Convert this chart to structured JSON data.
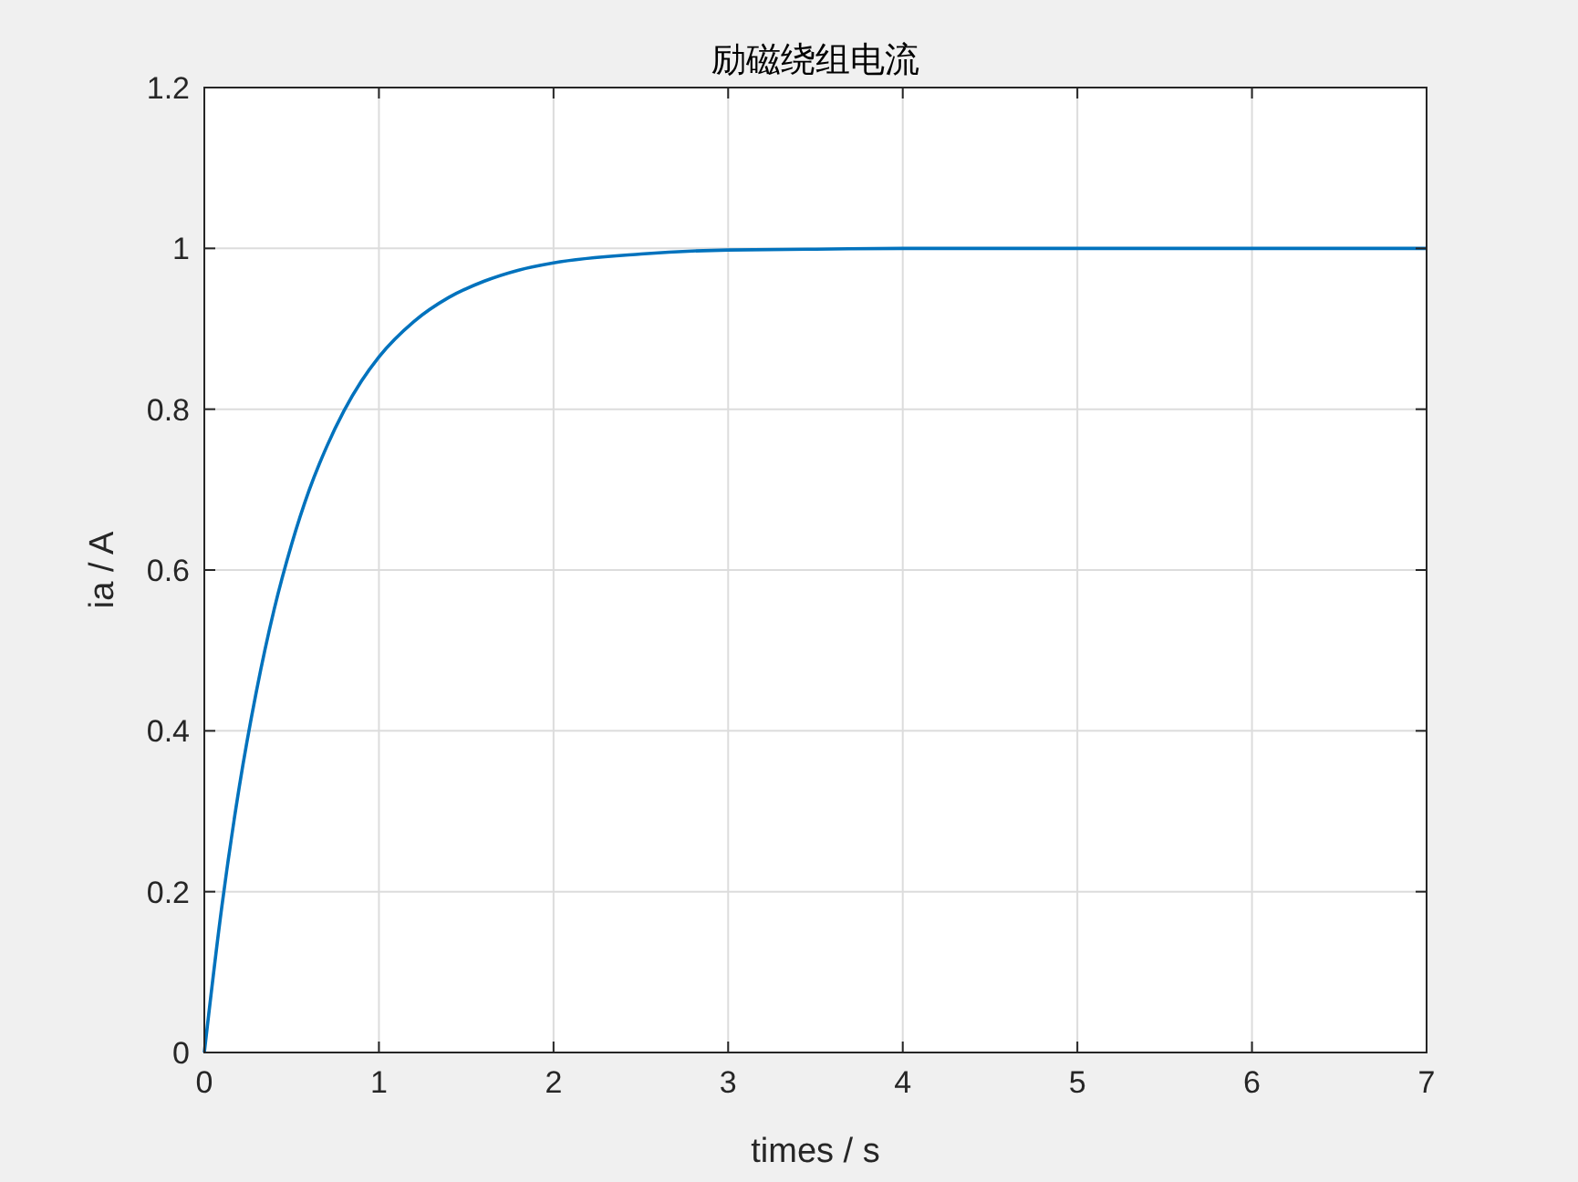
{
  "chart_data": {
    "type": "line",
    "title": "励磁绕组电流",
    "xlabel": "times / s",
    "ylabel": "ia / A",
    "x": [
      0,
      0.1,
      0.2,
      0.3,
      0.4,
      0.5,
      0.6,
      0.7,
      0.8,
      0.9,
      1,
      1.2,
      1.4,
      1.6,
      1.8,
      2,
      2.5,
      3,
      3.5,
      4,
      5,
      6,
      7
    ],
    "series": [
      {
        "color": "#0072bd",
        "values": [
          0,
          0.181,
          0.33,
          0.451,
          0.551,
          0.632,
          0.699,
          0.753,
          0.798,
          0.835,
          0.865,
          0.909,
          0.939,
          0.959,
          0.973,
          0.982,
          0.993,
          0.998,
          0.999,
          1,
          1,
          1,
          1
        ]
      }
    ],
    "xlim": [
      0,
      7
    ],
    "xticks": [
      0,
      1,
      2,
      3,
      4,
      5,
      6,
      7
    ],
    "ylim": [
      0,
      1.2
    ],
    "yticks": [
      0,
      0.2,
      0.4,
      0.6,
      0.8,
      1,
      1.2
    ],
    "grid": true
  }
}
